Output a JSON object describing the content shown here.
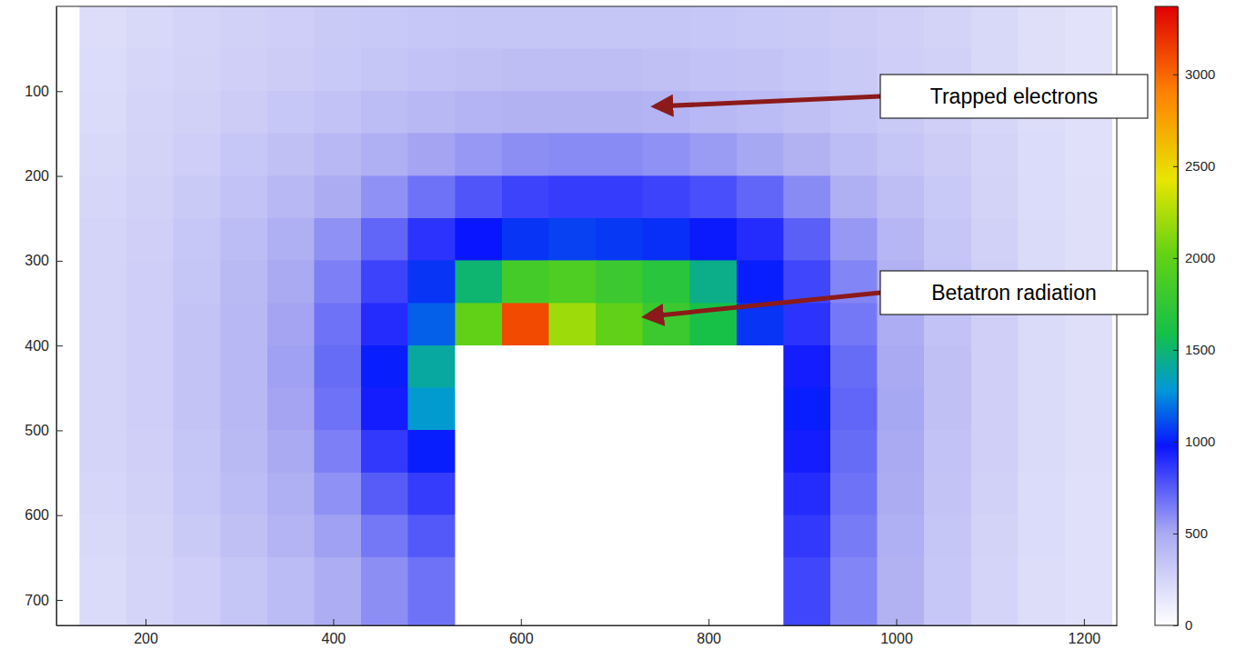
{
  "chart_data": {
    "type": "heatmap",
    "xlim": [
      105,
      1235
    ],
    "xticks": [
      200,
      400,
      600,
      800,
      1000,
      1200
    ],
    "ylim": [
      730,
      0
    ],
    "yticks": [
      100,
      200,
      300,
      400,
      500,
      600,
      700
    ],
    "x_edges": [
      130,
      180,
      230,
      280,
      330,
      380,
      430,
      480,
      530,
      580,
      630,
      680,
      730,
      780,
      830,
      880,
      930,
      980,
      1030,
      1080,
      1130,
      1180,
      1230
    ],
    "y_edges": [
      0,
      50,
      100,
      150,
      200,
      250,
      300,
      350,
      400,
      450,
      500,
      550,
      600,
      650,
      730
    ],
    "cells": [
      [
        200,
        230,
        250,
        270,
        290,
        310,
        320,
        330,
        340,
        340,
        340,
        340,
        340,
        330,
        320,
        310,
        300,
        280,
        260,
        230,
        190,
        170
      ],
      [
        210,
        240,
        260,
        280,
        300,
        320,
        340,
        360,
        370,
        380,
        380,
        380,
        370,
        360,
        350,
        330,
        310,
        290,
        270,
        230,
        190,
        170
      ],
      [
        220,
        250,
        270,
        300,
        330,
        360,
        390,
        420,
        440,
        450,
        450,
        450,
        440,
        420,
        400,
        370,
        340,
        310,
        280,
        240,
        200,
        180
      ],
      [
        230,
        260,
        290,
        330,
        370,
        420,
        470,
        520,
        560,
        590,
        600,
        600,
        580,
        550,
        510,
        450,
        390,
        340,
        300,
        250,
        210,
        180
      ],
      [
        240,
        270,
        310,
        360,
        420,
        490,
        580,
        680,
        770,
        830,
        850,
        850,
        830,
        790,
        720,
        600,
        470,
        380,
        320,
        260,
        210,
        190
      ],
      [
        250,
        280,
        330,
        390,
        470,
        580,
        720,
        880,
        980,
        1050,
        1080,
        1060,
        1040,
        990,
        900,
        740,
        560,
        430,
        340,
        270,
        220,
        190
      ],
      [
        250,
        290,
        340,
        410,
        500,
        640,
        830,
        1050,
        1500,
        1850,
        1900,
        1800,
        1700,
        1450,
        1000,
        820,
        620,
        460,
        350,
        280,
        220,
        190
      ],
      [
        250,
        290,
        350,
        420,
        520,
        680,
        900,
        1150,
        2000,
        3100,
        2200,
        2000,
        1800,
        1600,
        1050,
        880,
        660,
        480,
        360,
        280,
        220,
        190
      ],
      [
        250,
        290,
        350,
        420,
        530,
        700,
        1000,
        1400,
        0,
        0,
        0,
        0,
        0,
        0,
        0,
        950,
        700,
        500,
        370,
        280,
        220,
        190
      ],
      [
        250,
        290,
        350,
        420,
        520,
        680,
        950,
        1300,
        0,
        0,
        0,
        0,
        0,
        0,
        0,
        1000,
        720,
        510,
        370,
        280,
        220,
        190
      ],
      [
        250,
        280,
        340,
        410,
        500,
        640,
        860,
        1000,
        0,
        0,
        0,
        0,
        0,
        0,
        0,
        950,
        700,
        500,
        360,
        280,
        220,
        190
      ],
      [
        240,
        270,
        330,
        390,
        470,
        580,
        750,
        850,
        0,
        0,
        0,
        0,
        0,
        0,
        0,
        900,
        680,
        490,
        350,
        270,
        210,
        180
      ],
      [
        230,
        260,
        310,
        370,
        440,
        530,
        660,
        760,
        0,
        0,
        0,
        0,
        0,
        0,
        0,
        860,
        650,
        470,
        340,
        260,
        210,
        180
      ],
      [
        220,
        250,
        290,
        340,
        400,
        480,
        590,
        680,
        0,
        0,
        0,
        0,
        0,
        0,
        0,
        820,
        620,
        450,
        330,
        250,
        200,
        180
      ]
    ],
    "colorbar": {
      "range": [
        0,
        3370
      ],
      "ticks": [
        0,
        500,
        1000,
        1500,
        2000,
        2500,
        3000
      ]
    },
    "annotations": [
      {
        "text": "Trapped electrons",
        "x": 743,
        "y": 118
      },
      {
        "text": "Betatron radiation",
        "x": 733,
        "y": 366
      }
    ]
  }
}
